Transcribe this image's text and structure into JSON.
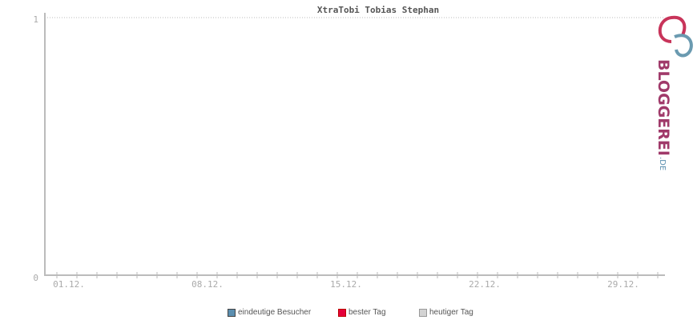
{
  "chart_data": {
    "type": "line",
    "title": "XtraTobi Tobias Stephan",
    "xlabel": "",
    "ylabel": "",
    "ylim": [
      0,
      1
    ],
    "yticks": [
      "0",
      "1"
    ],
    "xtick_labels": [
      "01.12.",
      "08.12.",
      "15.12.",
      "22.12.",
      "29.12."
    ],
    "grid": "horizontal dotted at max",
    "legend_position": "bottom",
    "series": [
      {
        "name": "eindeutige Besucher",
        "color": "#5b8fb0"
      },
      {
        "name": "bester Tag",
        "color": "#e4003a"
      },
      {
        "name": "heutiger Tag",
        "color": "#d3d3d3"
      }
    ]
  },
  "logo": {
    "text": "BLOGGEREI",
    "suffix": ".DE"
  }
}
